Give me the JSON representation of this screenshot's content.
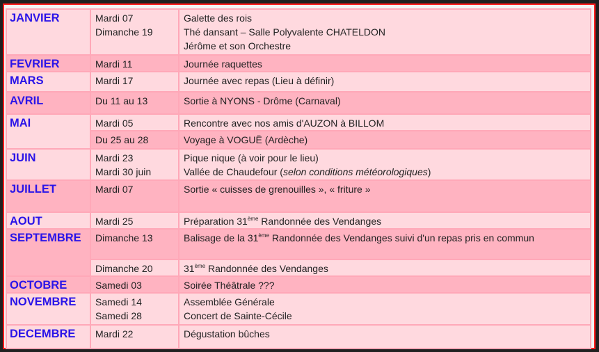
{
  "months": [
    {
      "name": "JANVIER",
      "entries": [
        {
          "date": "Mardi 07",
          "event": "Galette des rois"
        },
        {
          "date": "Dimanche 19",
          "event": "Thé dansant – Salle Polyvalente CHATELDON",
          "event2": "Jérôme et son Orchestre"
        }
      ]
    },
    {
      "name": "FEVRIER",
      "entries": [
        {
          "date": "Mardi 11",
          "event": "Journée raquettes"
        }
      ]
    },
    {
      "name": "MARS",
      "entries": [
        {
          "date": "Mardi 17",
          "event": "Journée avec repas (Lieu à définir)"
        }
      ]
    },
    {
      "name": "AVRIL",
      "entries": [
        {
          "date": "Du 11 au 13",
          "event": "Sortie à NYONS - Drôme (Carnaval)"
        }
      ]
    },
    {
      "name": "MAI",
      "entries": [
        {
          "date": "Mardi 05",
          "event": "Rencontre avec nos amis d'AUZON à BILLOM"
        },
        {
          "date": "Du 25 au 28",
          "event": "Voyage à VOGUË (Ardèche)"
        }
      ]
    },
    {
      "name": "JUIN",
      "entries": [
        {
          "date": "Mardi 23",
          "event": "Pique nique (à voir pour le lieu)"
        },
        {
          "date": "Mardi 30 juin",
          "event": "Vallée de Chaudefour (",
          "event_italic": "selon conditions météorologiques",
          "event_end": ")"
        }
      ]
    },
    {
      "name": "JUILLET",
      "entries": [
        {
          "date": "Mardi 07",
          "event": "Sortie « cuisses de grenouilles », « friture »"
        }
      ]
    },
    {
      "name": "AOUT",
      "entries": [
        {
          "date": "Mardi 25",
          "event_pre": "Préparation 31",
          "sup": "ème",
          "event": " Randonnée des Vendanges"
        }
      ]
    },
    {
      "name": "SEPTEMBRE",
      "entries": [
        {
          "date": "Dimanche 13",
          "event_pre": "Balisage de la 31",
          "sup": "ème",
          "event": " Randonnée des Vendanges suivi d'un repas pris en commun"
        },
        {
          "date": "Dimanche 20",
          "event_pre": "31",
          "sup": "ème",
          "event": " Randonnée des Vendanges"
        }
      ]
    },
    {
      "name": "OCTOBRE",
      "entries": [
        {
          "date": "Samedi 03",
          "event": "Soirée Théâtrale ???"
        }
      ]
    },
    {
      "name": "NOVEMBRE",
      "entries": [
        {
          "date": "Samedi 14",
          "event": "Assemblée Générale"
        },
        {
          "date": "Samedi 28",
          "event": "Concert de Sainte-Cécile"
        }
      ]
    },
    {
      "name": "DECEMBRE",
      "entries": [
        {
          "date": "Mardi 22",
          "event": "Dégustation bûches"
        }
      ]
    }
  ],
  "colors": {
    "month_text": "#2a14e8",
    "row_light": "#ffd9df",
    "row_dark": "#ffb3c1",
    "frame": "#ff1a1a"
  }
}
